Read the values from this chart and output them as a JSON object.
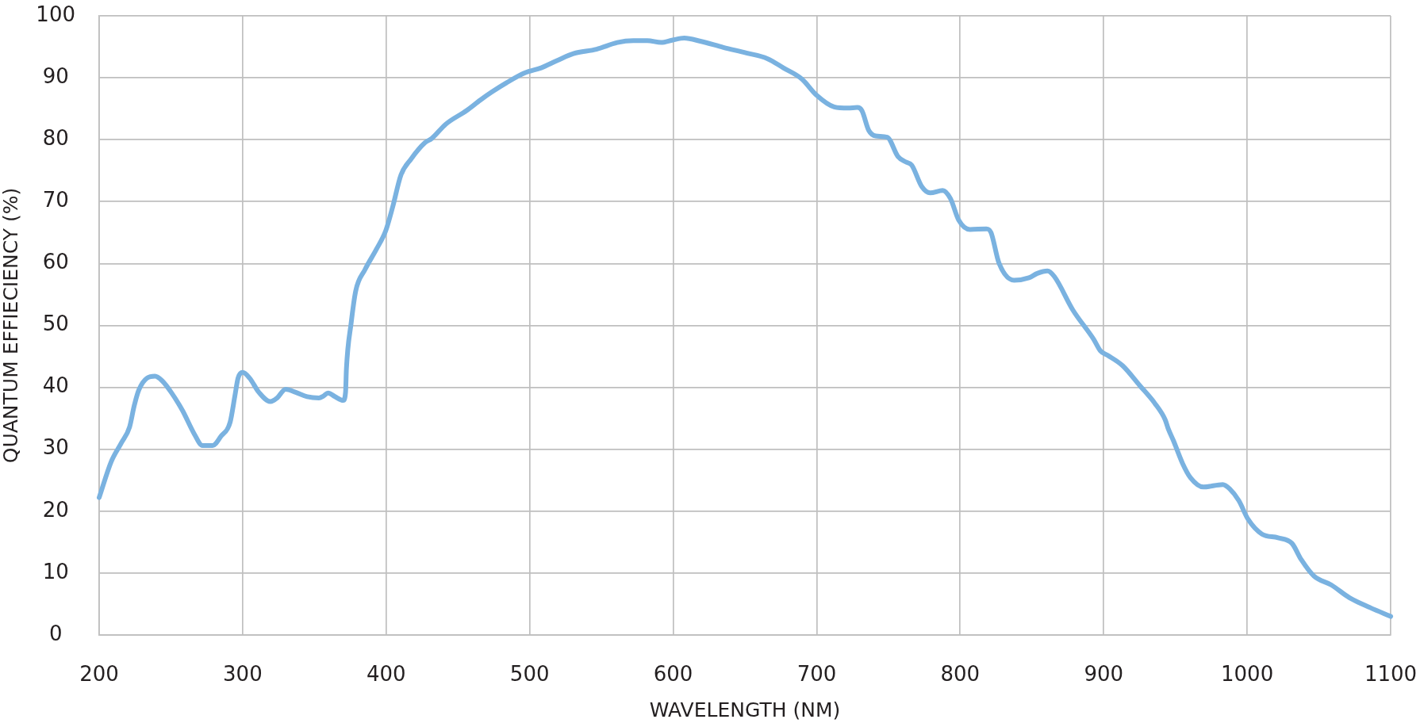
{
  "chart_data": {
    "type": "line",
    "xlabel": "WAVELENGTH (NM)",
    "ylabel": "QUANTUM EFFIECIENCY (%)",
    "x": [
      200,
      208.4,
      215.4,
      221.2,
      224.4,
      227.7,
      233.4,
      238.9,
      243.7,
      250.2,
      258.2,
      266.2,
      272.0,
      279.1,
      284.9,
      291.3,
      294.5,
      296.8,
      300.0,
      304.8,
      311.3,
      319.3,
      324.1,
      329.9,
      337.0,
      345.0,
      353.1,
      356.3,
      359.5,
      364.3,
      370.1,
      371.7,
      372.3,
      375.6,
      378.8,
      385.2,
      393.2,
      399.7,
      404.5,
      410.3,
      417.4,
      427.0,
      431.8,
      441.5,
      456.0,
      465.6,
      473.6,
      483.9,
      496.8,
      508.0,
      519.3,
      530.5,
      546.6,
      561.1,
      572.3,
      582.0,
      591.6,
      599.7,
      607.7,
      619.0,
      635.0,
      651.1,
      665.6,
      676.8,
      689.7,
      699.4,
      712.2,
      721.9,
      728.3,
      731.5,
      736.3,
      741.2,
      749.2,
      756.6,
      762.1,
      766.2,
      773.3,
      779.1,
      787.8,
      793.2,
      799.0,
      806.8,
      818.3,
      821.5,
      827.0,
      837.6,
      847.9,
      853.7,
      860.8,
      865.6,
      878.5,
      892.9,
      897.7,
      902.6,
      913.2,
      925.1,
      935.7,
      942.8,
      945.0,
      948.6,
      955.0,
      960.5,
      969.5,
      983.0,
      987.8,
      994.2,
      1000.6,
      1010.3,
      1021.5,
      1031.2,
      1037.6,
      1046.6,
      1058.5,
      1071.4,
      1085.9,
      1100
    ],
    "series": [
      {
        "color": "#7ab2e0",
        "values": [
          22.2,
          28.0,
          31.0,
          33.6,
          37.0,
          39.6,
          41.5,
          41.8,
          41.1,
          39.2,
          36.2,
          32.5,
          30.6,
          30.6,
          32.1,
          34.4,
          38.5,
          41.5,
          42.4,
          41.5,
          39.2,
          37.7,
          38.3,
          39.7,
          39.2,
          38.5,
          38.3,
          38.6,
          39.1,
          38.5,
          37.9,
          39.2,
          43.0,
          50.4,
          55.6,
          59.0,
          62.3,
          65.3,
          69.1,
          74.3,
          76.9,
          79.5,
          80.2,
          82.5,
          84.7,
          86.4,
          87.7,
          89.2,
          90.8,
          91.6,
          92.8,
          93.9,
          94.6,
          95.7,
          96.0,
          96.0,
          95.7,
          96.1,
          96.4,
          95.9,
          94.9,
          94.0,
          93.1,
          91.6,
          89.8,
          87.3,
          85.3,
          85.1,
          85.2,
          84.7,
          81.5,
          80.6,
          80.4,
          77.3,
          76.4,
          75.9,
          72.4,
          71.4,
          71.8,
          70.5,
          67.0,
          65.5,
          65.6,
          65.0,
          60.1,
          57.3,
          57.7,
          58.4,
          58.8,
          57.9,
          52.5,
          47.8,
          45.9,
          45.2,
          43.5,
          40.3,
          37.4,
          34.8,
          33.3,
          31.4,
          27.7,
          25.4,
          23.9,
          24.3,
          23.6,
          21.7,
          18.7,
          16.3,
          15.7,
          14.8,
          12.2,
          9.5,
          8.1,
          6.0,
          4.4,
          3.0
        ]
      }
    ],
    "xlim": [
      200,
      1100
    ],
    "xticks": [
      200,
      300,
      400,
      500,
      600,
      700,
      800,
      900,
      1000,
      1100
    ],
    "ylim": [
      0,
      100
    ],
    "yticks": [
      0,
      10,
      20,
      30,
      40,
      50,
      60,
      70,
      80,
      90,
      100
    ],
    "grid": true,
    "marker": "none",
    "line_style": "solid"
  }
}
